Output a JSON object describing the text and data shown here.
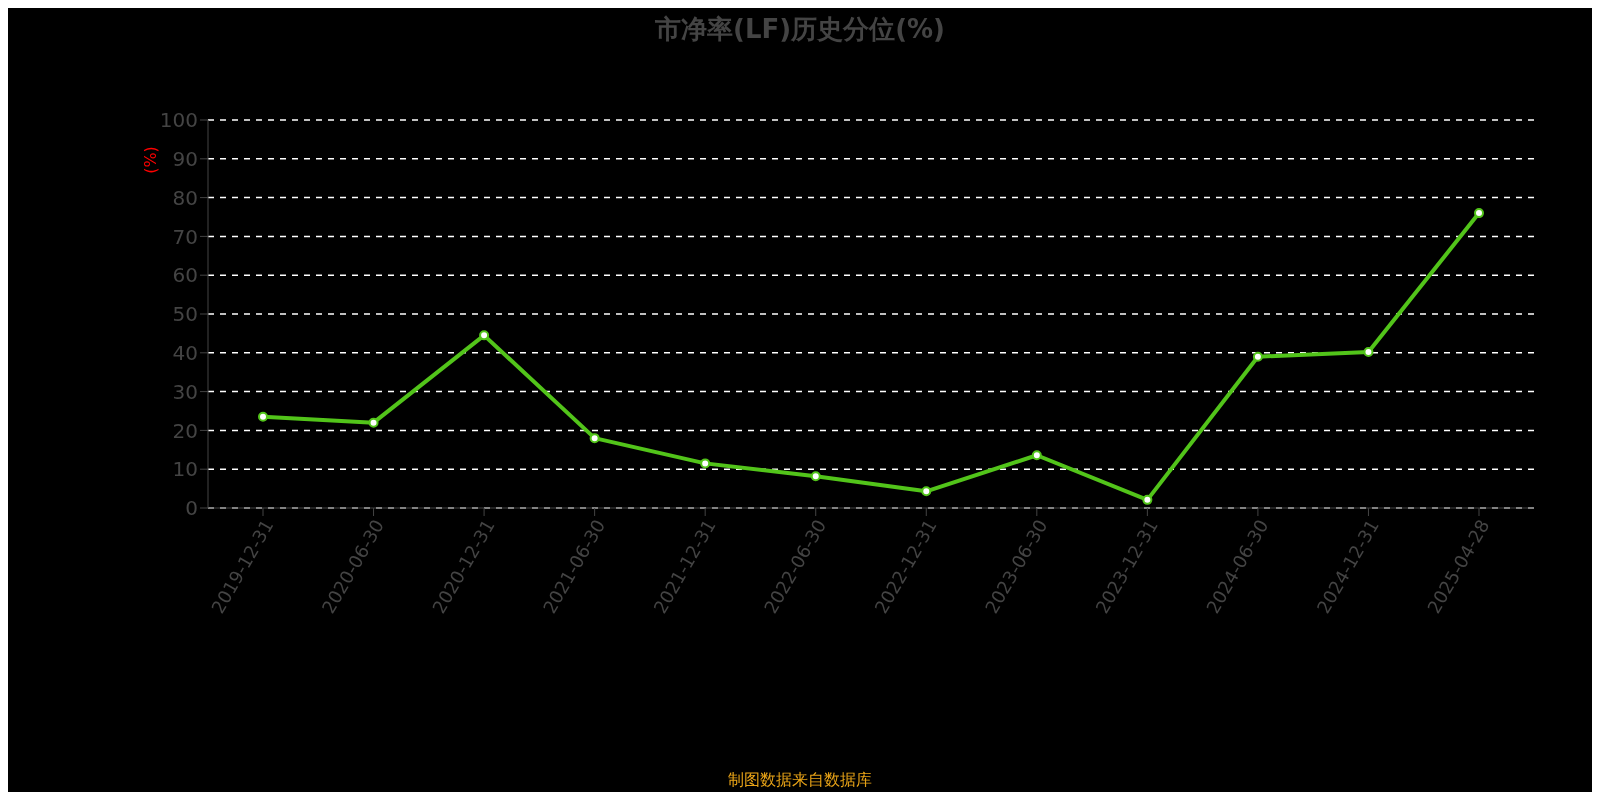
{
  "chart_data": {
    "type": "line",
    "title": "市净率(LF)历史分位(%)",
    "ylabel": "(%)",
    "categories": [
      "2019-12-31",
      "2020-06-30",
      "2020-12-31",
      "2021-06-30",
      "2021-12-31",
      "2022-06-30",
      "2022-12-31",
      "2023-06-30",
      "2023-12-31",
      "2024-06-30",
      "2024-12-31",
      "2025-04-28"
    ],
    "series": [
      {
        "color": "#52c41a",
        "values": [
          23.5,
          22,
          44.5,
          18,
          11.5,
          8.2,
          4.3,
          13.6,
          2.1,
          39,
          40.2,
          76
        ]
      }
    ],
    "ylim": [
      0,
      100
    ],
    "yticks": [
      0,
      10,
      20,
      30,
      40,
      50,
      60,
      70,
      80,
      90,
      100
    ],
    "grid": "y",
    "marker": "circle",
    "line_style": "solid",
    "legend": false,
    "annotations": [
      "制图数据来自数据库"
    ]
  }
}
